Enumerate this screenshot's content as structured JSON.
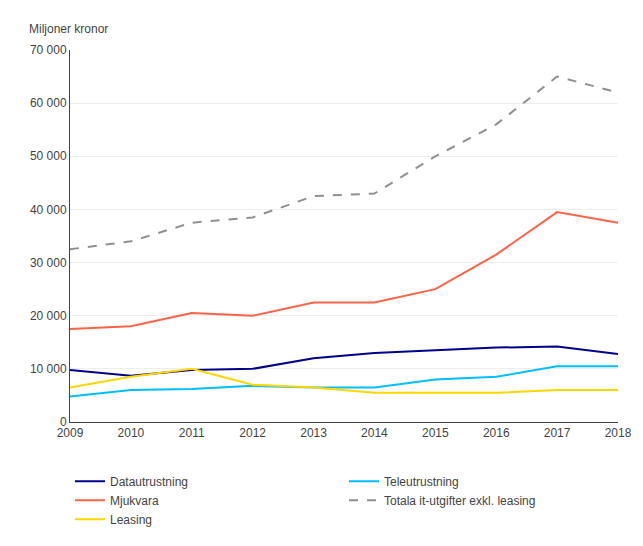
{
  "chart_data": {
    "type": "line",
    "ylabel": "Miljoner kronor",
    "x": [
      2009,
      2010,
      2011,
      2012,
      2013,
      2014,
      2015,
      2016,
      2017,
      2018
    ],
    "series": [
      {
        "name": "Datautrustning",
        "color": "#00008B",
        "line_style": "solid",
        "values": [
          9800,
          8700,
          9800,
          10000,
          12000,
          13000,
          13500,
          14000,
          14200,
          12800
        ]
      },
      {
        "name": "Teleutrustning",
        "color": "#00BFFF",
        "line_style": "solid",
        "values": [
          4800,
          6000,
          6200,
          6800,
          6500,
          6500,
          8000,
          8500,
          10500,
          10500
        ]
      },
      {
        "name": "Mjukvara",
        "color": "#FF6347",
        "line_style": "solid",
        "values": [
          17500,
          18000,
          20500,
          20000,
          22500,
          22500,
          25000,
          31500,
          39500,
          37500
        ]
      },
      {
        "name": "Totala it-utgifter exkl. leasing",
        "color": "#909090",
        "line_style": "dashed",
        "values": [
          32500,
          34000,
          37500,
          38500,
          42500,
          43000,
          50000,
          56000,
          65000,
          62000
        ]
      },
      {
        "name": "Leasing",
        "color": "#FFD700",
        "line_style": "solid",
        "values": [
          6500,
          8500,
          10000,
          7000,
          6500,
          5500,
          5500,
          5500,
          6000,
          6000
        ]
      }
    ],
    "xlim": [
      2009,
      2018
    ],
    "xticks": [
      2009,
      2010,
      2011,
      2012,
      2013,
      2014,
      2015,
      2016,
      2017,
      2018
    ],
    "ylim": [
      0,
      70000
    ],
    "yticks": [
      0,
      {
        "value": 10000,
        "label": "10 000"
      },
      {
        "value": 20000,
        "label": "20 000"
      },
      {
        "value": 30000,
        "label": "30 000"
      },
      {
        "value": 40000,
        "label": "40 000"
      },
      {
        "value": 50000,
        "label": "50 000"
      },
      {
        "value": 60000,
        "label": "60 000"
      },
      {
        "value": 70000,
        "label": "70 000"
      }
    ],
    "grid": true,
    "legend": "bottom"
  }
}
